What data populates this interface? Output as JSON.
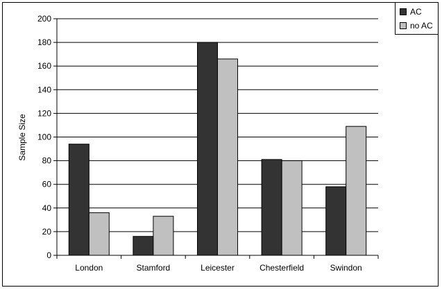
{
  "chart_data": {
    "type": "bar",
    "title": "",
    "xlabel": "",
    "ylabel": "Sample Size",
    "ylim": [
      0,
      200
    ],
    "yticks": [
      0,
      20,
      40,
      60,
      80,
      100,
      120,
      140,
      160,
      180,
      200
    ],
    "grid": true,
    "legend_position": "top-right",
    "categories": [
      "London",
      "Stamford",
      "Leicester",
      "Chesterfield",
      "Swindon"
    ],
    "series": [
      {
        "name": "AC",
        "color": "#333333",
        "values": [
          94,
          16,
          180,
          81,
          58
        ]
      },
      {
        "name": "no AC",
        "color": "#c0c0c0",
        "values": [
          36,
          33,
          166,
          80,
          109
        ]
      }
    ]
  }
}
